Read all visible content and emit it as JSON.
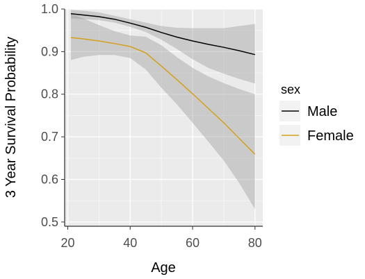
{
  "chart_data": {
    "type": "line",
    "xlabel": "Age",
    "ylabel": "3 Year Survival Probability",
    "xlim": [
      19,
      82.5
    ],
    "ylim": [
      0.49,
      1.0
    ],
    "x_ticks": [
      20,
      40,
      60,
      80
    ],
    "x_tick_labels": [
      "20",
      "40",
      "60",
      "80"
    ],
    "y_ticks": [
      0.5,
      0.6,
      0.7,
      0.8,
      0.9,
      1.0
    ],
    "y_tick_labels": [
      "0.5",
      "0.6",
      "0.7",
      "0.8",
      "0.9",
      "1.0"
    ],
    "grid": true,
    "legend": {
      "title": "sex",
      "position": "right"
    },
    "series": [
      {
        "name": "Male",
        "color": "#000000",
        "x": [
          21,
          25,
          30,
          35,
          40,
          45,
          50,
          55,
          60,
          65,
          70,
          75,
          80
        ],
        "y": [
          0.989,
          0.986,
          0.982,
          0.976,
          0.967,
          0.957,
          0.945,
          0.934,
          0.925,
          0.917,
          0.91,
          0.902,
          0.893
        ],
        "ci_lower": [
          0.978,
          0.976,
          0.974,
          0.968,
          0.958,
          0.946,
          0.928,
          0.906,
          0.882,
          0.862,
          0.848,
          0.836,
          0.825
        ],
        "ci_upper": [
          0.998,
          0.996,
          0.992,
          0.984,
          0.976,
          0.968,
          0.96,
          0.956,
          0.955,
          0.955,
          0.955,
          0.96,
          0.965
        ]
      },
      {
        "name": "Female",
        "color": "#d4a017",
        "x": [
          21,
          25,
          30,
          35,
          40,
          45,
          50,
          55,
          60,
          65,
          70,
          75,
          80
        ],
        "y": [
          0.933,
          0.93,
          0.925,
          0.919,
          0.912,
          0.897,
          0.866,
          0.834,
          0.801,
          0.767,
          0.733,
          0.696,
          0.659
        ],
        "ci_lower": [
          0.88,
          0.888,
          0.892,
          0.892,
          0.885,
          0.858,
          0.815,
          0.776,
          0.733,
          0.689,
          0.644,
          0.591,
          0.53
        ],
        "ci_upper": [
          0.988,
          0.978,
          0.962,
          0.948,
          0.938,
          0.935,
          0.915,
          0.887,
          0.862,
          0.842,
          0.826,
          0.812,
          0.8
        ]
      }
    ]
  }
}
